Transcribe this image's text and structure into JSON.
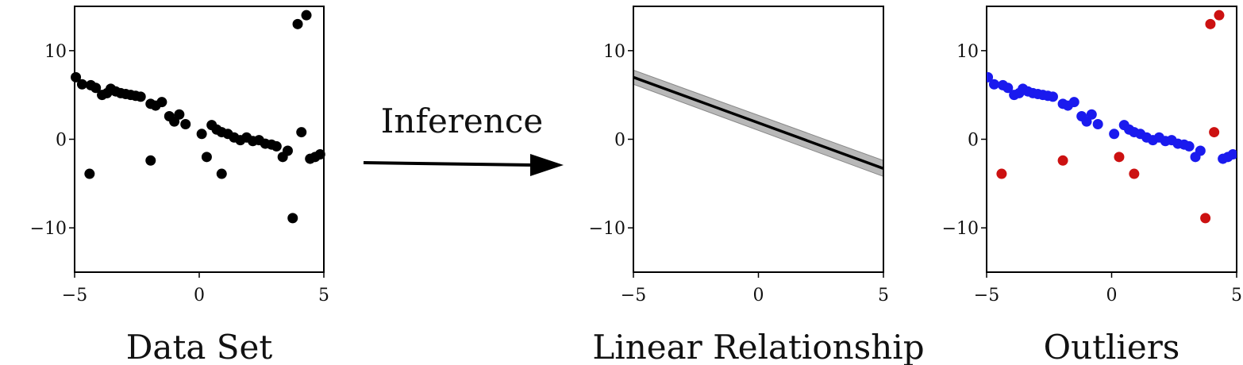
{
  "arrow_label": "Inference",
  "colors": {
    "point": "#000000",
    "inlier": "#1a1aee",
    "outlier": "#cc1111",
    "band": "#b8b8b8",
    "line": "#000000"
  },
  "chart_data": [
    {
      "type": "scatter",
      "caption": "Data Set",
      "xlim": [
        -5,
        5
      ],
      "ylim": [
        -15,
        15
      ],
      "xticks": [
        "−5",
        "0",
        "5"
      ],
      "yticks": [
        "10",
        "0",
        "−10"
      ],
      "xtick_values": [
        -5,
        0,
        5
      ],
      "ytick_values": [
        10,
        0,
        -10
      ],
      "points": [
        [
          -4.95,
          7.0
        ],
        [
          -4.7,
          6.2
        ],
        [
          -4.35,
          6.1
        ],
        [
          -4.15,
          5.8
        ],
        [
          -3.9,
          5.0
        ],
        [
          -3.7,
          5.2
        ],
        [
          -3.55,
          5.7
        ],
        [
          -3.35,
          5.4
        ],
        [
          -3.15,
          5.2
        ],
        [
          -2.95,
          5.1
        ],
        [
          -2.75,
          5.0
        ],
        [
          -2.55,
          4.9
        ],
        [
          -2.35,
          4.8
        ],
        [
          -1.95,
          4.0
        ],
        [
          -1.75,
          3.8
        ],
        [
          -1.5,
          4.2
        ],
        [
          -1.2,
          2.6
        ],
        [
          -1.0,
          2.0
        ],
        [
          -0.8,
          2.8
        ],
        [
          -0.55,
          1.7
        ],
        [
          0.1,
          0.6
        ],
        [
          0.5,
          1.6
        ],
        [
          0.7,
          1.1
        ],
        [
          0.9,
          0.8
        ],
        [
          1.15,
          0.6
        ],
        [
          1.4,
          0.2
        ],
        [
          1.65,
          -0.1
        ],
        [
          1.9,
          0.2
        ],
        [
          2.15,
          -0.2
        ],
        [
          2.4,
          -0.1
        ],
        [
          2.65,
          -0.5
        ],
        [
          2.9,
          -0.6
        ],
        [
          3.1,
          -0.8
        ],
        [
          3.35,
          -2.0
        ],
        [
          3.55,
          -1.3
        ],
        [
          4.45,
          -2.2
        ],
        [
          4.65,
          -2.0
        ],
        [
          4.85,
          -1.7
        ],
        [
          -4.4,
          -3.9
        ],
        [
          -1.95,
          -2.4
        ],
        [
          0.3,
          -2.0
        ],
        [
          0.9,
          -3.9
        ],
        [
          3.75,
          -8.9
        ],
        [
          4.1,
          0.8
        ],
        [
          3.95,
          13.0
        ],
        [
          4.3,
          14.0
        ]
      ],
      "outliers": []
    },
    {
      "type": "line",
      "caption": "Linear Relationship",
      "xlim": [
        -5,
        5
      ],
      "ylim": [
        -15,
        15
      ],
      "xticks": [
        "−5",
        "0",
        "5"
      ],
      "yticks": [
        "10",
        "0",
        "−10"
      ],
      "xtick_values": [
        -5,
        0,
        5
      ],
      "ytick_values": [
        10,
        0,
        -10
      ],
      "line": {
        "x": [
          -5,
          5
        ],
        "y": [
          7.0,
          -3.3
        ]
      },
      "band": {
        "x": [
          -5,
          5
        ],
        "y_upper": [
          7.8,
          -2.4
        ],
        "y_lower": [
          6.2,
          -4.2
        ]
      }
    },
    {
      "type": "scatter",
      "caption": "Outliers",
      "xlim": [
        -5,
        5
      ],
      "ylim": [
        -15,
        15
      ],
      "xticks": [
        "−5",
        "0",
        "5"
      ],
      "yticks": [
        "10",
        "0",
        "−10"
      ],
      "xtick_values": [
        -5,
        0,
        5
      ],
      "ytick_values": [
        10,
        0,
        -10
      ],
      "points": [
        [
          -4.95,
          7.0
        ],
        [
          -4.7,
          6.2
        ],
        [
          -4.35,
          6.1
        ],
        [
          -4.15,
          5.8
        ],
        [
          -3.9,
          5.0
        ],
        [
          -3.7,
          5.2
        ],
        [
          -3.55,
          5.7
        ],
        [
          -3.35,
          5.4
        ],
        [
          -3.15,
          5.2
        ],
        [
          -2.95,
          5.1
        ],
        [
          -2.75,
          5.0
        ],
        [
          -2.55,
          4.9
        ],
        [
          -2.35,
          4.8
        ],
        [
          -1.95,
          4.0
        ],
        [
          -1.75,
          3.8
        ],
        [
          -1.5,
          4.2
        ],
        [
          -1.2,
          2.6
        ],
        [
          -1.0,
          2.0
        ],
        [
          -0.8,
          2.8
        ],
        [
          -0.55,
          1.7
        ],
        [
          0.1,
          0.6
        ],
        [
          0.5,
          1.6
        ],
        [
          0.7,
          1.1
        ],
        [
          0.9,
          0.8
        ],
        [
          1.15,
          0.6
        ],
        [
          1.4,
          0.2
        ],
        [
          1.65,
          -0.1
        ],
        [
          1.9,
          0.2
        ],
        [
          2.15,
          -0.2
        ],
        [
          2.4,
          -0.1
        ],
        [
          2.65,
          -0.5
        ],
        [
          2.9,
          -0.6
        ],
        [
          3.1,
          -0.8
        ],
        [
          3.35,
          -2.0
        ],
        [
          3.55,
          -1.3
        ],
        [
          4.45,
          -2.2
        ],
        [
          4.65,
          -2.0
        ],
        [
          4.85,
          -1.7
        ]
      ],
      "outliers": [
        [
          -4.4,
          -3.9
        ],
        [
          -1.95,
          -2.4
        ],
        [
          0.3,
          -2.0
        ],
        [
          0.9,
          -3.9
        ],
        [
          3.75,
          -8.9
        ],
        [
          4.1,
          0.8
        ],
        [
          3.95,
          13.0
        ],
        [
          4.3,
          14.0
        ]
      ]
    }
  ]
}
